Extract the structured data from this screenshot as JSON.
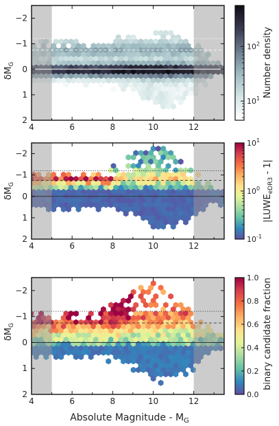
{
  "figure": {
    "xlabel": "Absolute Magnitude - M",
    "xlabel_sub": "G"
  },
  "chart_data": [
    {
      "type": "heatmap",
      "panel": "top",
      "ylabel": "δM",
      "ylabel_sub": "G",
      "xlim": [
        4,
        13.5
      ],
      "ylim": [
        2,
        -2.5
      ],
      "xticks": [
        4,
        6,
        8,
        10,
        12
      ],
      "yticks": [
        -2,
        -1,
        0,
        1,
        2
      ],
      "shaded_x_ranges": [
        [
          4,
          5
        ],
        [
          12,
          13.5
        ]
      ],
      "reference_lines": [
        {
          "y": 0,
          "style": "solid",
          "color": "#ffffff"
        },
        {
          "y": -0.75,
          "style": "dashed",
          "color": "#ffffff"
        },
        {
          "y": -1.2,
          "style": "dotted",
          "color": "#ffffff"
        }
      ],
      "colorbar": {
        "label": "Number density",
        "scale": "log",
        "tick_labels": [
          "10",
          "10"
        ],
        "tick_exps": [
          "1",
          "2"
        ],
        "colors": [
          "#ffffff",
          "#d5e6e6",
          "#9fbcc2",
          "#6c7d90",
          "#3a3a52",
          "#0f0d14"
        ]
      }
    },
    {
      "type": "heatmap",
      "panel": "middle",
      "ylabel": "δM",
      "ylabel_sub": "G",
      "xlim": [
        4,
        13.5
      ],
      "ylim": [
        2,
        -2.5
      ],
      "xticks": [
        4,
        6,
        8,
        10,
        12
      ],
      "yticks": [
        -2,
        -1,
        0,
        1,
        2
      ],
      "shaded_x_ranges": [
        [
          4,
          5
        ],
        [
          12,
          13.5
        ]
      ],
      "reference_lines": [
        {
          "y": 0,
          "style": "solid",
          "color": "#333333"
        },
        {
          "y": -0.75,
          "style": "dashed",
          "color": "#333333"
        },
        {
          "y": -1.2,
          "style": "dotted",
          "color": "#333333"
        }
      ],
      "colorbar": {
        "label": "|LUWE",
        "label_sub": "eDR3",
        "label_end": " - 1|",
        "scale": "log",
        "tick_labels": [
          "10",
          "10",
          "10"
        ],
        "tick_exps": [
          "1",
          "0",
          "-1"
        ],
        "colors": [
          "#5e4fa2",
          "#3288bd",
          "#66c2a5",
          "#abdda4",
          "#e6f598",
          "#fee08b",
          "#fdae61",
          "#f46d43",
          "#d53e4f",
          "#9e0142"
        ]
      }
    },
    {
      "type": "heatmap",
      "panel": "bottom",
      "ylabel": "δM",
      "ylabel_sub": "G",
      "xlim": [
        4,
        13.5
      ],
      "ylim": [
        2,
        -2.5
      ],
      "xticks": [
        4,
        6,
        8,
        10,
        12
      ],
      "yticks": [
        -2,
        -1,
        0,
        1,
        2
      ],
      "shaded_x_ranges": [
        [
          4,
          5
        ],
        [
          12,
          13.5
        ]
      ],
      "reference_lines": [
        {
          "y": 0,
          "style": "solid",
          "color": "#333333"
        },
        {
          "y": -0.75,
          "style": "dashed",
          "color": "#333333"
        },
        {
          "y": -1.2,
          "style": "dotted",
          "color": "#333333"
        }
      ],
      "colorbar": {
        "label": "binary candidate fraction",
        "scale": "linear",
        "tick_labels": [
          "1.0",
          "0.8",
          "0.6",
          "0.4",
          "0.2",
          "0.0"
        ],
        "range": [
          0,
          1
        ],
        "colors": [
          "#5e4fa2",
          "#3288bd",
          "#66c2a5",
          "#abdda4",
          "#e6f598",
          "#fee08b",
          "#fdae61",
          "#f46d43",
          "#d53e4f",
          "#9e0142"
        ]
      }
    }
  ]
}
